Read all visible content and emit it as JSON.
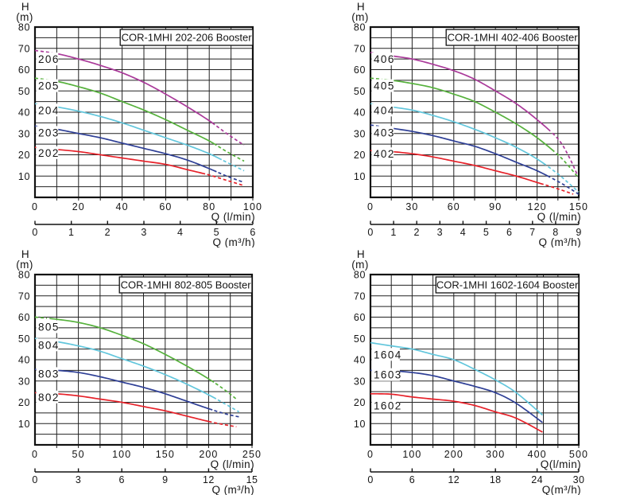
{
  "page": {
    "background": "#ffffff",
    "description": "COR-1MHI booster pump performance curves"
  },
  "colors": {
    "red": "#e62129",
    "blue": "#2e3f96",
    "cyan": "#62c6dc",
    "green": "#56b13c",
    "magenta": "#aa3a9a",
    "grid": "#222222",
    "border": "#111111",
    "text": "#151515"
  },
  "chart_data": [
    {
      "type": "line",
      "title": "COR-1MHI 202-206 Booster",
      "y_axis": {
        "title": "H",
        "unit": "(m)",
        "min": 0,
        "max": 80,
        "grid_step": 5,
        "tick_labels": [
          10,
          20,
          30,
          40,
          50,
          60,
          70,
          80
        ]
      },
      "x_axis": {
        "title": "Q (l/min)",
        "min": 0,
        "max": 100,
        "grid_step": 10,
        "tick_labels": [
          0,
          20,
          40,
          60,
          80,
          100
        ],
        "extra_gridlines": []
      },
      "x2_axis": {
        "title": "Q (m³/h)",
        "min": 0,
        "max": 6,
        "tick_labels": [
          0,
          1,
          2,
          3,
          4,
          5,
          6
        ]
      },
      "series": [
        {
          "name": "206",
          "color": "#aa3a9a",
          "label_h": 65,
          "dash_head_q": 8,
          "dash_tail_q": 83,
          "points": [
            [
              0,
              69
            ],
            [
              10,
              67.5
            ],
            [
              20,
              65
            ],
            [
              30,
              62
            ],
            [
              40,
              58.5
            ],
            [
              50,
              54
            ],
            [
              60,
              48.5
            ],
            [
              70,
              42.5
            ],
            [
              80,
              36
            ],
            [
              88,
              30
            ],
            [
              96,
              24.5
            ]
          ]
        },
        {
          "name": "205",
          "color": "#56b13c",
          "label_h": 52.5,
          "dash_head_q": 8,
          "dash_tail_q": 84,
          "points": [
            [
              0,
              56
            ],
            [
              10,
              54.5
            ],
            [
              20,
              52
            ],
            [
              30,
              49
            ],
            [
              40,
              45
            ],
            [
              50,
              41
            ],
            [
              60,
              36.5
            ],
            [
              70,
              31.5
            ],
            [
              80,
              26.5
            ],
            [
              88,
              21.5
            ],
            [
              96,
              17
            ]
          ]
        },
        {
          "name": "204",
          "color": "#62c6dc",
          "label_h": 41,
          "dash_head_q": 8,
          "dash_tail_q": 86,
          "points": [
            [
              0,
              44
            ],
            [
              10,
              42.5
            ],
            [
              20,
              40.5
            ],
            [
              30,
              38
            ],
            [
              40,
              35
            ],
            [
              50,
              31.5
            ],
            [
              60,
              28
            ],
            [
              70,
              24.5
            ],
            [
              80,
              20.5
            ],
            [
              88,
              16.5
            ],
            [
              96,
              12.5
            ]
          ]
        },
        {
          "name": "203",
          "color": "#2e3f96",
          "label_h": 30.5,
          "dash_head_q": 8,
          "dash_tail_q": 84,
          "points": [
            [
              0,
              33.5
            ],
            [
              10,
              32
            ],
            [
              20,
              30
            ],
            [
              30,
              28
            ],
            [
              40,
              25.5
            ],
            [
              50,
              23
            ],
            [
              60,
              20.5
            ],
            [
              70,
              17.5
            ],
            [
              80,
              13.5
            ],
            [
              88,
              10
            ],
            [
              96,
              7
            ]
          ]
        },
        {
          "name": "202",
          "color": "#e62129",
          "label_h": 21,
          "dash_head_q": 8,
          "dash_tail_q": 79,
          "points": [
            [
              0,
              23.5
            ],
            [
              10,
              22.5
            ],
            [
              20,
              21.5
            ],
            [
              30,
              20
            ],
            [
              40,
              18.5
            ],
            [
              50,
              17
            ],
            [
              60,
              15.5
            ],
            [
              70,
              13
            ],
            [
              80,
              10.5
            ],
            [
              88,
              8
            ],
            [
              96,
              5.5
            ]
          ]
        }
      ]
    },
    {
      "type": "line",
      "title": "COR-1MHI 402-406 Booster",
      "y_axis": {
        "title": "H",
        "unit": "(m)",
        "min": 0,
        "max": 80,
        "grid_step": 5,
        "tick_labels": [
          10,
          20,
          30,
          40,
          50,
          60,
          70,
          80
        ]
      },
      "x_axis": {
        "title": "Q (l/min)",
        "min": 0,
        "max": 150,
        "grid_step": 15,
        "tick_labels": [
          0,
          30,
          60,
          90,
          120,
          150
        ],
        "extra_gridlines": []
      },
      "x2_axis": {
        "title": "Q (m³/h)",
        "min": 0,
        "max": 9,
        "tick_labels": [
          0,
          1,
          2,
          3,
          4,
          5,
          6,
          7,
          8,
          9
        ]
      },
      "series": [
        {
          "name": "406",
          "color": "#aa3a9a",
          "label_h": 65,
          "dash_head_q": 10,
          "dash_tail_q": 131,
          "points": [
            [
              0,
              68
            ],
            [
              15,
              66.5
            ],
            [
              30,
              65
            ],
            [
              45,
              62.5
            ],
            [
              60,
              59.5
            ],
            [
              75,
              55.5
            ],
            [
              90,
              50
            ],
            [
              105,
              44
            ],
            [
              120,
              36.5
            ],
            [
              135,
              27.5
            ],
            [
              143,
              19
            ],
            [
              149,
              10.5
            ]
          ]
        },
        {
          "name": "405",
          "color": "#56b13c",
          "label_h": 52.5,
          "dash_head_q": 10,
          "dash_tail_q": 133,
          "points": [
            [
              0,
              56
            ],
            [
              15,
              55
            ],
            [
              30,
              53.5
            ],
            [
              45,
              51.5
            ],
            [
              60,
              48.5
            ],
            [
              75,
              45
            ],
            [
              90,
              40
            ],
            [
              105,
              34.5
            ],
            [
              120,
              28
            ],
            [
              135,
              20
            ],
            [
              143,
              14.5
            ],
            [
              150,
              9
            ]
          ]
        },
        {
          "name": "404",
          "color": "#62c6dc",
          "label_h": 41,
          "dash_head_q": 10,
          "dash_tail_q": 127,
          "points": [
            [
              0,
              44
            ],
            [
              15,
              42.5
            ],
            [
              30,
              41
            ],
            [
              45,
              38.5
            ],
            [
              60,
              35.5
            ],
            [
              75,
              32
            ],
            [
              90,
              28
            ],
            [
              105,
              23.5
            ],
            [
              120,
              18
            ],
            [
              135,
              11
            ],
            [
              143,
              6.5
            ],
            [
              150,
              2.5
            ]
          ]
        },
        {
          "name": "403",
          "color": "#2e3f96",
          "label_h": 30.5,
          "dash_head_q": 10,
          "dash_tail_q": 130,
          "points": [
            [
              0,
              34
            ],
            [
              15,
              32.5
            ],
            [
              30,
              31
            ],
            [
              45,
              29
            ],
            [
              60,
              26.5
            ],
            [
              75,
              24
            ],
            [
              90,
              20.5
            ],
            [
              105,
              16.5
            ],
            [
              120,
              12.5
            ],
            [
              135,
              7.5
            ],
            [
              144,
              4
            ],
            [
              151,
              1
            ]
          ]
        },
        {
          "name": "402",
          "color": "#e62129",
          "label_h": 20.5,
          "dash_head_q": 10,
          "dash_tail_q": 126,
          "points": [
            [
              0,
              22
            ],
            [
              15,
              21.5
            ],
            [
              30,
              20.5
            ],
            [
              45,
              19
            ],
            [
              60,
              17
            ],
            [
              75,
              15
            ],
            [
              90,
              12.5
            ],
            [
              105,
              10
            ],
            [
              120,
              7
            ],
            [
              135,
              4
            ],
            [
              146,
              1.5
            ]
          ]
        }
      ]
    },
    {
      "type": "line",
      "title": "COR-1MHI 802-805 Booster",
      "y_axis": {
        "title": "H",
        "unit": "(m)",
        "min": 0,
        "max": 80,
        "grid_step": 5,
        "tick_labels": [
          10,
          20,
          30,
          40,
          50,
          60,
          70,
          80
        ]
      },
      "x_axis": {
        "title": "Q (l/min)",
        "min": 0,
        "max": 250,
        "grid_step": 25,
        "tick_labels": [
          0,
          50,
          100,
          150,
          200,
          250
        ],
        "extra_gridlines": []
      },
      "x2_axis": {
        "title": "Q (m³/h)",
        "min": 0,
        "max": 15,
        "tick_labels": [
          0,
          3,
          6,
          9,
          12,
          15
        ]
      },
      "series": [
        {
          "name": "805",
          "color": "#56b13c",
          "label_h": 55.5,
          "dash_head_q": 16,
          "dash_tail_q": 207,
          "points": [
            [
              0,
              60
            ],
            [
              25,
              59
            ],
            [
              50,
              57.5
            ],
            [
              75,
              55
            ],
            [
              100,
              51.5
            ],
            [
              125,
              47.5
            ],
            [
              150,
              42.5
            ],
            [
              175,
              37
            ],
            [
              200,
              31
            ],
            [
              218,
              26
            ],
            [
              232,
              21.5
            ]
          ]
        },
        {
          "name": "804",
          "color": "#62c6dc",
          "label_h": 47,
          "dash_head_q": 16,
          "dash_tail_q": 210,
          "points": [
            [
              0,
              50
            ],
            [
              25,
              48.5
            ],
            [
              50,
              46.5
            ],
            [
              75,
              44
            ],
            [
              100,
              40.5
            ],
            [
              125,
              37
            ],
            [
              150,
              33
            ],
            [
              175,
              28.5
            ],
            [
              200,
              23.5
            ],
            [
              220,
              19
            ],
            [
              235,
              15.5
            ]
          ]
        },
        {
          "name": "803",
          "color": "#2e3f96",
          "label_h": 33.5,
          "dash_head_q": 16,
          "dash_tail_q": 205,
          "points": [
            [
              0,
              35.5
            ],
            [
              25,
              35
            ],
            [
              50,
              34
            ],
            [
              75,
              32
            ],
            [
              100,
              29.5
            ],
            [
              125,
              27
            ],
            [
              150,
              24
            ],
            [
              175,
              20.5
            ],
            [
              200,
              17
            ],
            [
              220,
              14.5
            ],
            [
              237,
              13
            ]
          ]
        },
        {
          "name": "802",
          "color": "#e62129",
          "label_h": 22.5,
          "dash_head_q": 16,
          "dash_tail_q": 200,
          "points": [
            [
              0,
              24.5
            ],
            [
              25,
              24
            ],
            [
              50,
              23
            ],
            [
              75,
              21.5
            ],
            [
              100,
              20
            ],
            [
              125,
              18
            ],
            [
              150,
              16
            ],
            [
              175,
              13.5
            ],
            [
              200,
              11
            ],
            [
              218,
              9.5
            ],
            [
              232,
              8.5
            ]
          ]
        }
      ]
    },
    {
      "type": "line",
      "title": "COR-1MHI 1602-1604 Booster",
      "y_axis": {
        "title": "H",
        "unit": "(m)",
        "min": 0,
        "max": 80,
        "grid_step": 5,
        "tick_labels": [
          10,
          20,
          30,
          40,
          50,
          60,
          70,
          80
        ]
      },
      "x_axis": {
        "title": "Q(l/min)",
        "min": 0,
        "max": 500,
        "grid_step": 50,
        "tick_labels": [
          0,
          100,
          200,
          300,
          400,
          500
        ],
        "extra_gridlines": [
          415
        ]
      },
      "x2_axis": {
        "title": "Q(m³/h)",
        "min": 0,
        "max": 30,
        "tick_labels": [
          0,
          6,
          12,
          18,
          24,
          30
        ]
      },
      "series": [
        {
          "name": "1604",
          "color": "#62c6dc",
          "label_h": 42.5,
          "dash_head_q": null,
          "dash_tail_q": null,
          "points": [
            [
              0,
              48
            ],
            [
              50,
              46.5
            ],
            [
              100,
              45
            ],
            [
              150,
              42.5
            ],
            [
              200,
              40
            ],
            [
              250,
              35.5
            ],
            [
              300,
              30.5
            ],
            [
              350,
              24.5
            ],
            [
              413,
              14
            ]
          ]
        },
        {
          "name": "1603",
          "color": "#2e3f96",
          "label_h": 33,
          "dash_head_q": null,
          "dash_tail_q": null,
          "points": [
            [
              0,
              35
            ],
            [
              50,
              34.8
            ],
            [
              100,
              34
            ],
            [
              150,
              32.5
            ],
            [
              200,
              30
            ],
            [
              250,
              27.5
            ],
            [
              300,
              24.5
            ],
            [
              350,
              19.5
            ],
            [
              413,
              10.5
            ]
          ]
        },
        {
          "name": "1602",
          "color": "#e62129",
          "label_h": 18.5,
          "dash_head_q": null,
          "dash_tail_q": null,
          "points": [
            [
              0,
              24
            ],
            [
              50,
              23.8
            ],
            [
              100,
              22.5
            ],
            [
              150,
              21.5
            ],
            [
              200,
              20.5
            ],
            [
              250,
              18.5
            ],
            [
              300,
              15.5
            ],
            [
              350,
              12.5
            ],
            [
              413,
              6
            ]
          ]
        }
      ]
    }
  ]
}
